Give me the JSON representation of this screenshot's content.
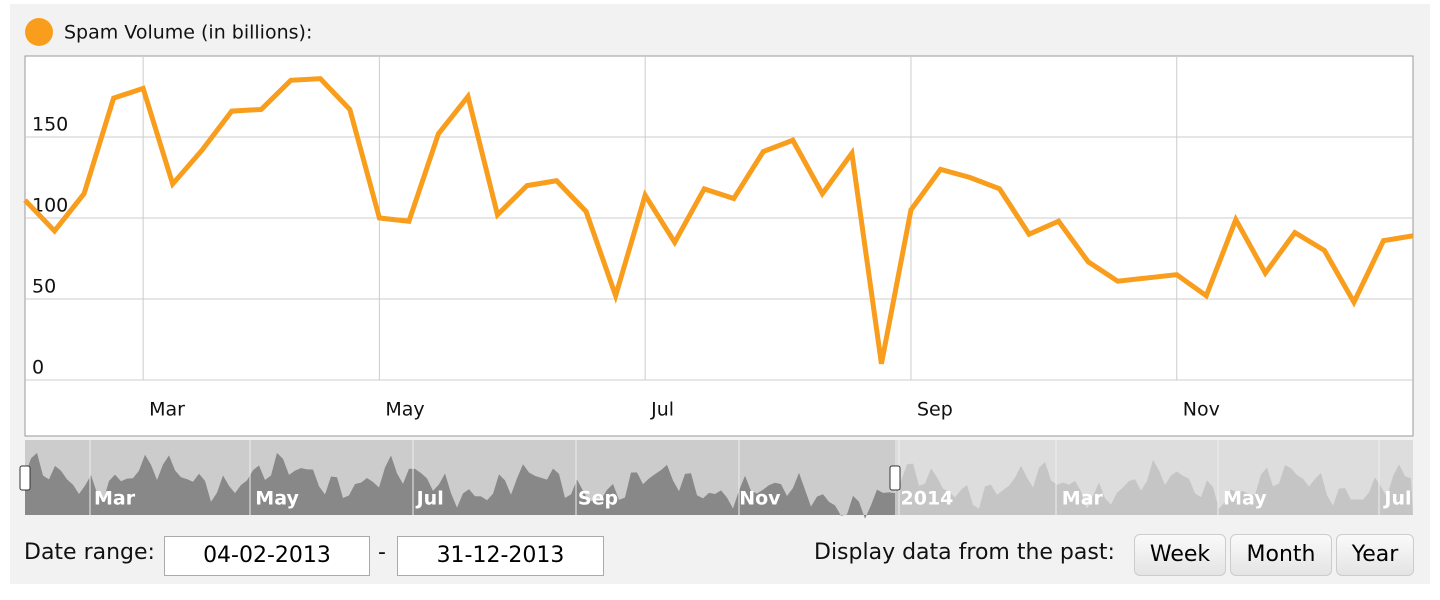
{
  "chart_data": {
    "type": "line",
    "series": [
      {
        "name": "Spam Volume (in billions):",
        "color": "#f99d1c",
        "values": [
          111,
          92,
          115,
          174,
          180,
          121,
          142,
          166,
          167,
          185,
          186,
          167,
          100,
          98,
          152,
          175,
          102,
          120,
          123,
          104,
          52,
          114,
          85,
          118,
          112,
          141,
          148,
          115,
          140,
          10,
          105,
          130,
          125,
          118,
          90,
          98,
          73,
          61,
          63,
          65,
          52,
          99,
          66,
          91,
          80,
          48,
          86,
          89
        ]
      }
    ],
    "categories": [
      null,
      null,
      null,
      null,
      "Mar",
      null,
      null,
      null,
      null,
      null,
      null,
      null,
      "May",
      null,
      null,
      null,
      null,
      null,
      null,
      null,
      null,
      "Jul",
      null,
      null,
      null,
      null,
      null,
      null,
      null,
      null,
      "Sep",
      null,
      null,
      null,
      null,
      null,
      null,
      null,
      null,
      "Nov",
      null,
      null,
      null,
      null,
      null,
      null,
      null,
      null
    ],
    "ylim": [
      0,
      200
    ],
    "yticks": [
      0,
      50,
      100,
      150
    ],
    "grid": true
  },
  "navigator": {
    "labels": [
      "Mar",
      "May",
      "Jul",
      "Sep",
      "Nov",
      "2014",
      "Mar",
      "May",
      "Jul"
    ]
  },
  "controls": {
    "date_range_label": "Date range:",
    "from": "04-02-2013",
    "separator": "-",
    "to": "31-12-2013",
    "past_label": "Display data from the past:",
    "buttons": [
      "Week",
      "Month",
      "Year"
    ]
  }
}
